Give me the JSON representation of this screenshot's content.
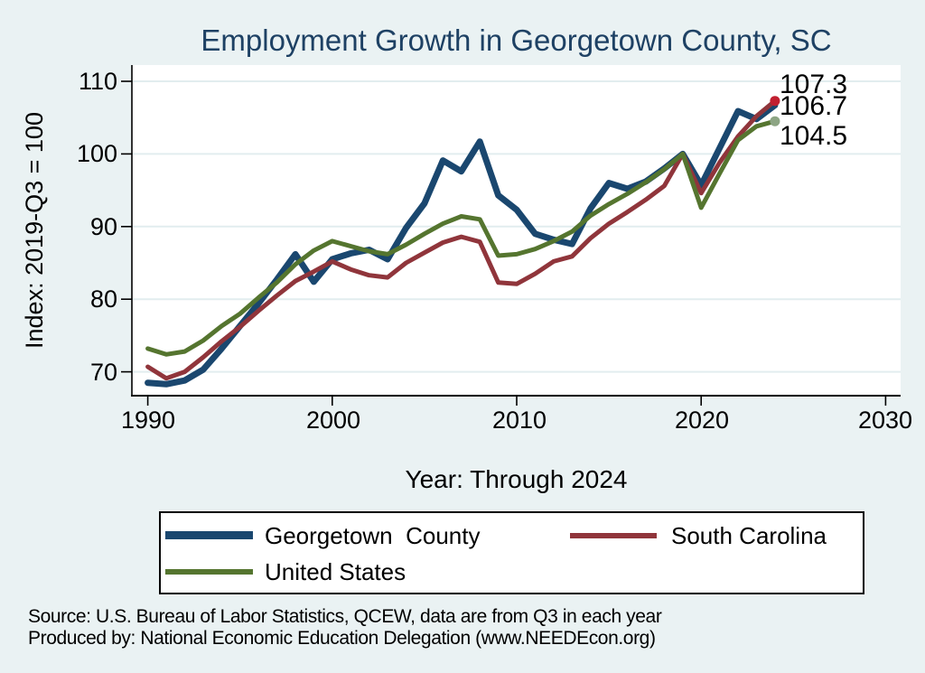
{
  "title": "Employment Growth in Georgetown County, SC",
  "colors": {
    "background": "#EAF2F3",
    "plot_bg": "#FFFFFF",
    "grid": "#E2EDEF",
    "axis": "#000000",
    "title": "#1E4164",
    "georgetown_county": "#1A476F",
    "south_carolina": "#90353B",
    "united_states": "#55752F",
    "south_carolina_marker": "#C11F30",
    "united_states_marker": "#8DA584"
  },
  "chart_data": {
    "type": "line",
    "title": "Employment Growth in Georgetown County, SC",
    "xlabel": "Year: Through 2024",
    "ylabel": "Index: 2019-Q3 = 100",
    "x_ticks": [
      1990,
      2000,
      2010,
      2020,
      2030
    ],
    "y_ticks": [
      70,
      80,
      90,
      100,
      110
    ],
    "xlim": [
      1989.1,
      2030.8
    ],
    "ylim": [
      66.7,
      112.2
    ],
    "grid": "horizontal",
    "legend_position": "bottom",
    "years": [
      1990,
      1991,
      1992,
      1993,
      1994,
      1995,
      1996,
      1997,
      1998,
      1999,
      2000,
      2001,
      2002,
      2003,
      2004,
      2005,
      2006,
      2007,
      2008,
      2009,
      2010,
      2011,
      2012,
      2013,
      2014,
      2015,
      2016,
      2017,
      2018,
      2019,
      2020,
      2021,
      2022,
      2023,
      2024
    ],
    "series": [
      {
        "id": "georgetown-county",
        "name": "Georgetown  County",
        "color": "#1A476F",
        "width": 7,
        "values": [
          68.5,
          68.3,
          68.8,
          70.3,
          73.2,
          76.3,
          79.4,
          82.7,
          86.2,
          82.4,
          85.5,
          86.3,
          86.8,
          85.5,
          89.8,
          93.2,
          99.1,
          97.6,
          101.7,
          94.3,
          92.3,
          89.0,
          88.2,
          87.6,
          92.5,
          96.0,
          95.2,
          96.2,
          98.0,
          100.0,
          95.7,
          100.8,
          105.9,
          104.8,
          106.7
        ]
      },
      {
        "id": "south-carolina",
        "name": "South Carolina",
        "color": "#90353B",
        "width": 5,
        "marker_color": "#C11F30",
        "values": [
          70.7,
          69.1,
          70.0,
          72.0,
          74.2,
          76.2,
          78.4,
          80.5,
          82.5,
          83.8,
          85.2,
          84.1,
          83.3,
          83.0,
          85.0,
          86.4,
          87.8,
          88.6,
          87.9,
          82.3,
          82.1,
          83.5,
          85.2,
          85.9,
          88.4,
          90.4,
          92.0,
          93.7,
          95.6,
          100.0,
          94.6,
          98.8,
          102.4,
          105.2,
          107.3
        ]
      },
      {
        "id": "united-states",
        "name": "United States",
        "color": "#55752F",
        "width": 5,
        "marker_color": "#8DA584",
        "values": [
          73.2,
          72.4,
          72.8,
          74.3,
          76.3,
          78.0,
          80.2,
          82.3,
          84.8,
          86.7,
          88.0,
          87.3,
          86.6,
          86.2,
          87.5,
          89.0,
          90.4,
          91.4,
          91.0,
          86.0,
          86.2,
          86.9,
          88.0,
          89.3,
          91.5,
          93.1,
          94.5,
          96.1,
          97.9,
          100.0,
          92.6,
          97.3,
          101.9,
          103.8,
          104.5
        ]
      }
    ],
    "end_labels": [
      "107.3",
      "106.7",
      "104.5"
    ]
  },
  "legend": {
    "items": [
      {
        "label": "Georgetown  County"
      },
      {
        "label": "South Carolina"
      },
      {
        "label": "United States"
      }
    ]
  },
  "footer": {
    "line1": "Source: U.S. Bureau of Labor Statistics, QCEW, data are from Q3 in each year",
    "line2": "Produced by: National Economic Education Delegation (www.NEEDEcon.org)"
  }
}
